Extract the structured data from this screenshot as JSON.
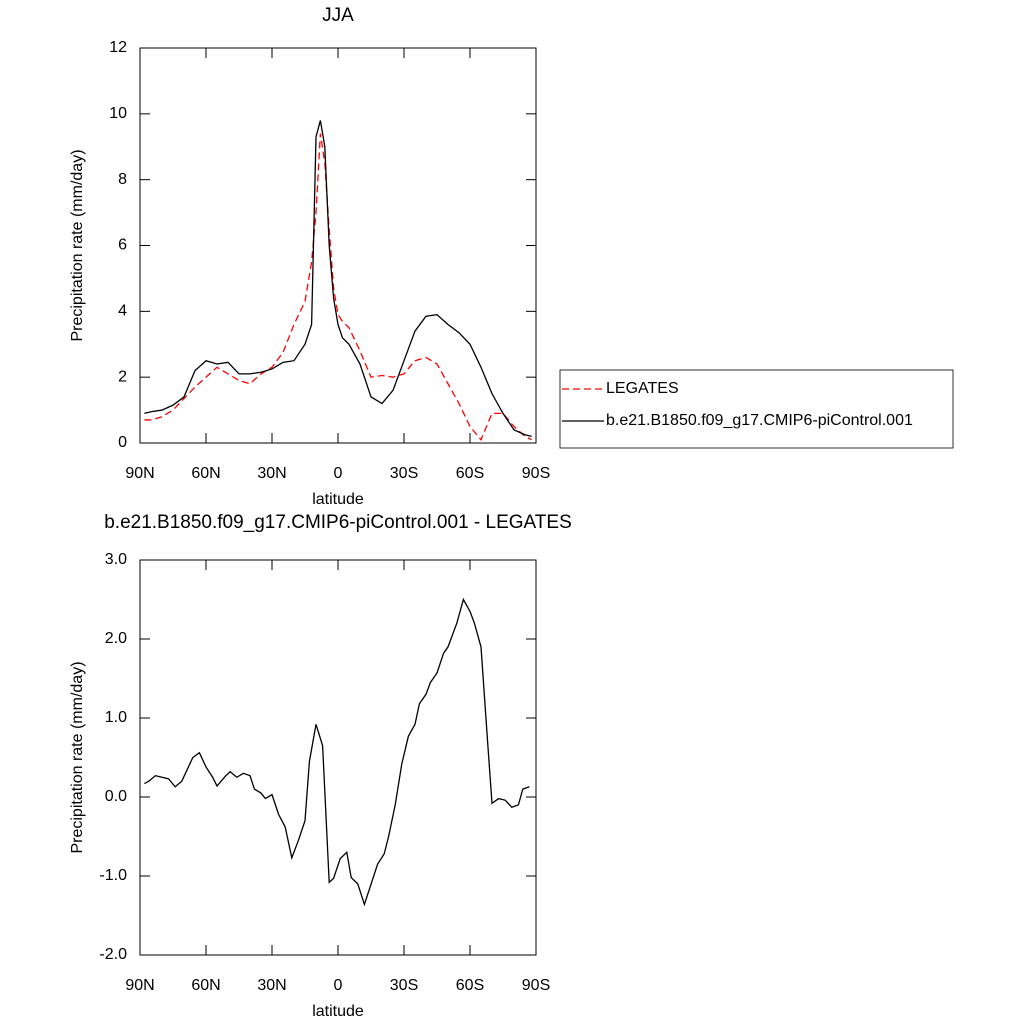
{
  "chart_data": [
    {
      "type": "line",
      "title": "JJA",
      "ylabel": "Precipitation rate (mm/day)",
      "xlabel": "latitude",
      "x": [
        88,
        85,
        80,
        75,
        70,
        65,
        60,
        55,
        50,
        45,
        40,
        35,
        30,
        25,
        20,
        15,
        12,
        10,
        8,
        6,
        4,
        2,
        0,
        -2,
        -5,
        -10,
        -15,
        -20,
        -25,
        -30,
        -35,
        -40,
        -45,
        -50,
        -55,
        -60,
        -65,
        -70,
        -75,
        -80,
        -85,
        -88
      ],
      "series": [
        {
          "name": "LEGATES",
          "color": "#ff0000",
          "line_style": "dashed",
          "values": [
            0.7,
            0.7,
            0.8,
            1.0,
            1.35,
            1.7,
            2.0,
            2.3,
            2.1,
            1.9,
            1.8,
            2.1,
            2.3,
            2.75,
            3.6,
            4.3,
            5.5,
            7.0,
            9.4,
            8.5,
            6.5,
            4.7,
            3.9,
            3.7,
            3.5,
            2.8,
            2.0,
            2.05,
            2.0,
            2.1,
            2.5,
            2.6,
            2.4,
            1.8,
            1.2,
            0.5,
            0.1,
            0.9,
            0.9,
            0.5,
            0.2,
            0.1
          ]
        },
        {
          "name": "b.e21.B1850.f09_g17.CMIP6-piControl.001",
          "color": "#000000",
          "line_style": "solid",
          "values": [
            0.9,
            0.95,
            1.0,
            1.15,
            1.4,
            2.2,
            2.5,
            2.4,
            2.45,
            2.1,
            2.1,
            2.15,
            2.25,
            2.45,
            2.5,
            3.0,
            3.6,
            9.3,
            9.8,
            9.0,
            6.0,
            4.4,
            3.6,
            3.2,
            3.0,
            2.4,
            1.4,
            1.2,
            1.6,
            2.5,
            3.4,
            3.85,
            3.9,
            3.6,
            3.35,
            3.0,
            2.3,
            1.5,
            0.9,
            0.4,
            0.25,
            0.2
          ]
        }
      ],
      "xlim": [
        90,
        -90
      ],
      "xticks": [
        {
          "value": 90,
          "label": "90N"
        },
        {
          "value": 60,
          "label": "60N"
        },
        {
          "value": 30,
          "label": "30N"
        },
        0,
        {
          "value": -30,
          "label": "30S"
        },
        {
          "value": -60,
          "label": "60S"
        },
        {
          "value": -90,
          "label": "90S"
        }
      ],
      "ylim": [
        0,
        12
      ],
      "yticks": [
        0,
        2,
        4,
        6,
        8,
        10,
        12
      ],
      "legend": "right"
    },
    {
      "type": "line",
      "title": "b.e21.B1850.f09_g17.CMIP6-piControl.001 - LEGATES",
      "ylabel": "Precipitation rate (mm/day)",
      "xlabel": "latitude",
      "x": [
        88,
        86,
        83,
        77,
        74,
        71,
        66,
        63,
        60,
        57,
        55,
        51,
        49,
        46,
        43,
        40,
        38,
        35,
        33,
        30,
        27,
        24,
        21,
        18,
        15,
        13,
        10,
        7,
        4,
        2,
        -1,
        -4,
        -6,
        -9,
        -12,
        -18,
        -21,
        -23,
        -26,
        -29,
        -32,
        -35,
        -37,
        -40,
        -42,
        -45,
        -48,
        -50,
        -54,
        -57,
        -60,
        -62,
        -65,
        -68,
        -70,
        -73,
        -76,
        -79,
        -82,
        -84,
        -87
      ],
      "values": [
        0.17,
        0.2,
        0.27,
        0.23,
        0.13,
        0.2,
        0.5,
        0.56,
        0.38,
        0.25,
        0.14,
        0.27,
        0.32,
        0.25,
        0.3,
        0.27,
        0.1,
        0.05,
        -0.02,
        0.03,
        -0.22,
        -0.38,
        -0.77,
        -0.55,
        -0.3,
        0.45,
        0.92,
        0.65,
        -1.08,
        -1.03,
        -0.78,
        -0.7,
        -1.02,
        -1.1,
        -1.36,
        -0.85,
        -0.72,
        -0.5,
        -0.1,
        0.42,
        0.77,
        0.92,
        1.18,
        1.3,
        1.45,
        1.57,
        1.82,
        1.9,
        2.2,
        2.5,
        2.35,
        2.2,
        1.9,
        0.7,
        -0.08,
        -0.02,
        -0.04,
        -0.13,
        -0.1,
        0.1,
        0.13
      ],
      "color": "#000000",
      "xlim": [
        90,
        -90
      ],
      "xticks": [
        {
          "value": 90,
          "label": "90N"
        },
        {
          "value": 60,
          "label": "60N"
        },
        {
          "value": 30,
          "label": "30N"
        },
        0,
        {
          "value": -30,
          "label": "30S"
        },
        {
          "value": -60,
          "label": "60S"
        },
        {
          "value": -90,
          "label": "90S"
        }
      ],
      "ylim": [
        -2,
        3
      ],
      "yticks": [
        {
          "value": -2,
          "label": "-2.0"
        },
        {
          "value": -1,
          "label": "-1.0"
        },
        {
          "value": 0,
          "label": "0.0"
        },
        {
          "value": 1,
          "label": "1.0"
        },
        {
          "value": 2,
          "label": "2.0"
        },
        {
          "value": 3,
          "label": "3.0"
        }
      ]
    }
  ]
}
